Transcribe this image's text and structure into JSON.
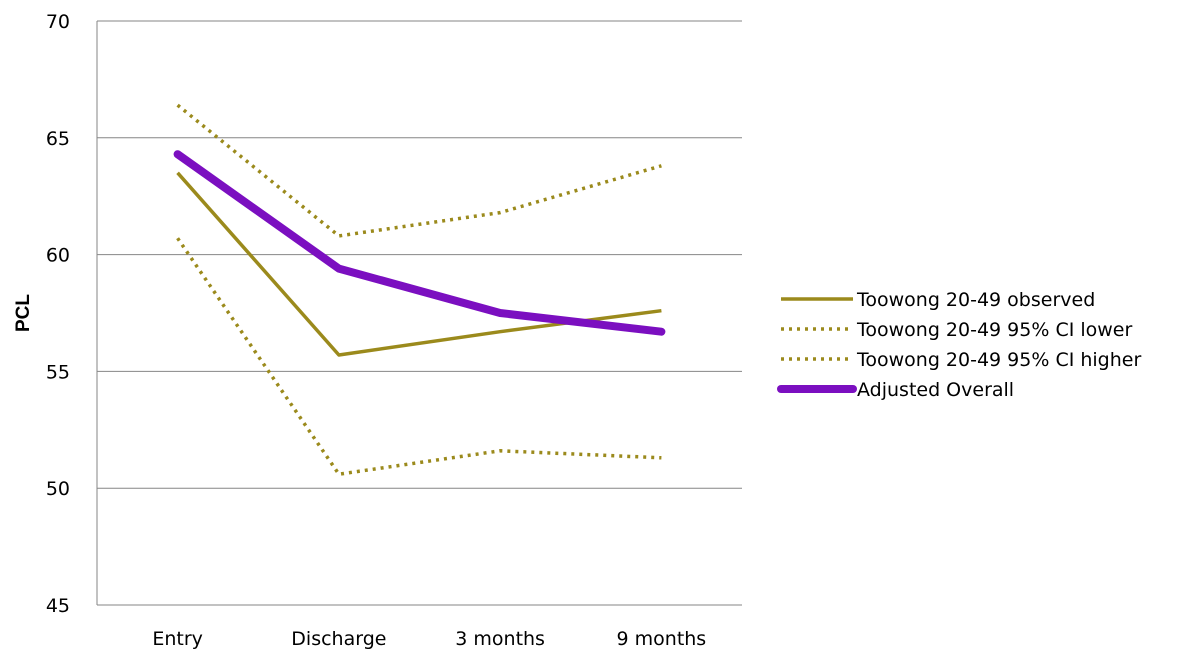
{
  "chart_data": {
    "type": "line",
    "title": "",
    "xlabel": "",
    "ylabel": "PCL",
    "categories": [
      "Entry",
      "Discharge",
      "3 months",
      "9 months"
    ],
    "ylim": [
      45,
      70
    ],
    "yticks": [
      45,
      50,
      55,
      60,
      65,
      70
    ],
    "grid": true,
    "legend_position": "right",
    "series": [
      {
        "name": "Toowong 20-49 observed",
        "values": [
          63.5,
          55.7,
          56.7,
          57.6
        ],
        "color": "#9B8A1C",
        "style": "solid"
      },
      {
        "name": "Toowong 20-49 95% CI lower",
        "values": [
          60.7,
          50.6,
          51.6,
          51.3
        ],
        "color": "#9B8A1C",
        "style": "dotted"
      },
      {
        "name": "Toowong 20-49 95% CI higher",
        "values": [
          66.4,
          60.8,
          61.8,
          63.8
        ],
        "color": "#9B8A1C",
        "style": "dotted"
      },
      {
        "name": "Adjusted Overall",
        "values": [
          64.3,
          59.4,
          57.5,
          56.7
        ],
        "color": "#7B0FC0",
        "style": "thick"
      }
    ]
  }
}
